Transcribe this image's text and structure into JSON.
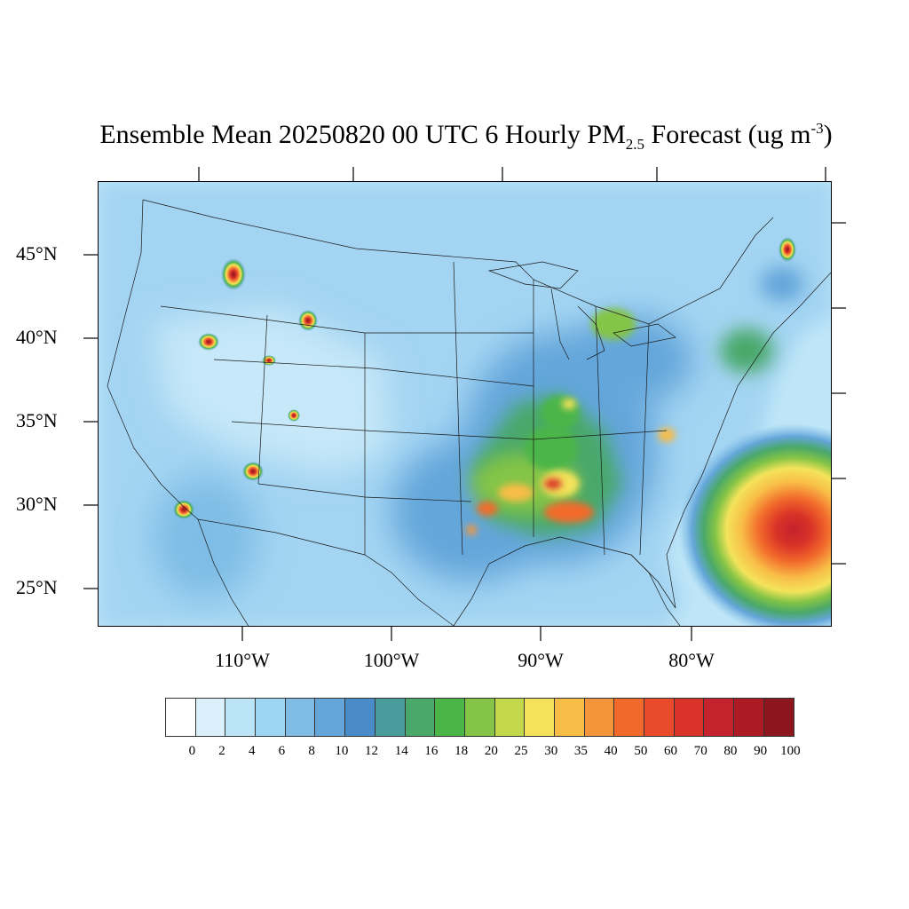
{
  "title": {
    "main": "Ensemble Mean 20250820 00 UTC 6 Hourly PM",
    "sub": "2.5",
    "after": " Forecast (ug m",
    "sup": "-3",
    "close": ")"
  },
  "lat_labels": [
    "45°N",
    "40°N",
    "35°N",
    "30°N",
    "25°N"
  ],
  "lon_labels": [
    "110°W",
    "100°W",
    "90°W",
    "80°W"
  ],
  "colorbar": {
    "labels": [
      "0",
      "2",
      "4",
      "6",
      "8",
      "10",
      "12",
      "14",
      "16",
      "18",
      "20",
      "25",
      "30",
      "35",
      "40",
      "50",
      "60",
      "70",
      "80",
      "90",
      "100"
    ],
    "colors": [
      "#ffffff",
      "#dcf0fb",
      "#bce4f7",
      "#9dd6f3",
      "#7fbde6",
      "#64a6da",
      "#4a8cc8",
      "#4a9c9c",
      "#4aa86a",
      "#4cb548",
      "#84c446",
      "#c4d84c",
      "#f4e35a",
      "#f8bd47",
      "#f5953b",
      "#f26a2b",
      "#e94a2a",
      "#d93228",
      "#c4222c",
      "#ac1a24",
      "#8c161e"
    ]
  },
  "colors": {
    "background_ocean": "#bfe6f8",
    "land_base": "#a3d4f2",
    "map_border": "#000000"
  }
}
